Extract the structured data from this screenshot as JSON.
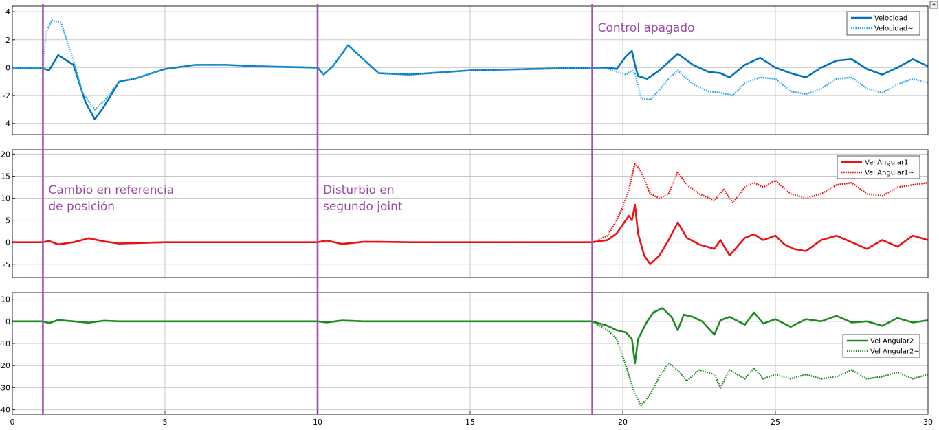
{
  "chart_data": {
    "type": "line",
    "x_axis": {
      "xlim": [
        0,
        30
      ],
      "ticks": [
        0,
        5,
        10,
        15,
        20,
        25,
        30
      ],
      "tick_labels": [
        "0",
        "5",
        "10",
        "15",
        "20",
        "25",
        "30"
      ]
    },
    "grid": true,
    "colors": {
      "velocity": "#0072bd",
      "velocity_est": "#2aa8e8",
      "vel_ang1": "#ee1111",
      "vel_ang2": "#1f8a1f",
      "markers": "#a050b0"
    },
    "event_markers": [
      {
        "x": 1,
        "label": [
          "Cambio en referencia",
          "de posición"
        ],
        "label_panel": 1
      },
      {
        "x": 10,
        "label": [
          "Disturbio en",
          "segundo joint"
        ],
        "label_panel": 1
      },
      {
        "x": 19,
        "label": [
          "Control apagado"
        ],
        "label_panel": 0
      }
    ],
    "panels": [
      {
        "ylim": [
          -4.8,
          4.4
        ],
        "yticks": [
          -4,
          -2,
          0,
          2,
          4
        ],
        "ytick_labels": [
          "-4",
          "-2",
          "0",
          "2",
          "4"
        ],
        "legend": "top-right",
        "series": [
          {
            "name": "Velocidad",
            "style": "solid",
            "color": "#0072bd",
            "x": [
              0,
              1,
              1.2,
              1.5,
              2.0,
              2.4,
              2.7,
              3.0,
              3.5,
              4.0,
              5.0,
              6.0,
              7.0,
              8.0,
              9.0,
              10.0,
              10.2,
              10.5,
              11.0,
              11.5,
              12.0,
              13.0,
              15.0,
              17.0,
              19.0,
              19.5,
              19.8,
              20.1,
              20.3,
              20.4,
              20.5,
              20.8,
              21.2,
              21.5,
              21.8,
              22.3,
              22.8,
              23.2,
              23.5,
              24.0,
              24.5,
              25.0,
              25.5,
              26.0,
              26.5,
              27.0,
              27.5,
              28.0,
              28.5,
              29.0,
              29.5,
              30.0
            ],
            "y": [
              0,
              -0.05,
              -0.2,
              0.9,
              0.2,
              -2.5,
              -3.7,
              -2.8,
              -1.0,
              -0.8,
              -0.1,
              0.2,
              0.2,
              0.1,
              0.05,
              0.0,
              -0.5,
              0.1,
              1.6,
              0.6,
              -0.4,
              -0.5,
              -0.2,
              -0.1,
              0.0,
              0.0,
              -0.1,
              0.8,
              1.2,
              0.2,
              -0.6,
              -0.8,
              -0.2,
              0.4,
              1.0,
              0.2,
              -0.3,
              -0.4,
              -0.7,
              0.2,
              0.7,
              0.0,
              -0.4,
              -0.7,
              0.0,
              0.5,
              0.6,
              -0.1,
              -0.5,
              0.0,
              0.6,
              0.1
            ]
          },
          {
            "name": "Velocidad~",
            "style": "dotted",
            "color": "#2aa8e8",
            "x": [
              0,
              1,
              1.1,
              1.3,
              1.6,
              2.0,
              2.3,
              2.7,
              3.0,
              3.5,
              4.0,
              5.0,
              6.0,
              7.0,
              8.0,
              9.0,
              10.0,
              10.2,
              10.5,
              11.0,
              11.5,
              12.0,
              13.0,
              15.0,
              17.0,
              19.0,
              19.5,
              19.8,
              20.1,
              20.3,
              20.4,
              20.6,
              20.9,
              21.2,
              21.5,
              21.8,
              22.3,
              22.8,
              23.2,
              23.6,
              24.0,
              24.5,
              25.0,
              25.5,
              26.0,
              26.5,
              27.0,
              27.5,
              28.0,
              28.5,
              29.0,
              29.5,
              30.0
            ],
            "y": [
              0,
              0,
              2.5,
              3.4,
              3.2,
              0.5,
              -1.8,
              -3.0,
              -2.4,
              -1.0,
              -0.8,
              -0.1,
              0.2,
              0.2,
              0.1,
              0.05,
              0.0,
              -0.5,
              0.1,
              1.6,
              0.6,
              -0.4,
              -0.5,
              -0.2,
              -0.1,
              0.0,
              -0.1,
              -0.3,
              -0.5,
              -0.2,
              -0.4,
              -2.2,
              -2.3,
              -1.6,
              -0.8,
              -0.2,
              -1.2,
              -1.7,
              -1.8,
              -2.0,
              -1.1,
              -0.7,
              -0.8,
              -1.7,
              -1.9,
              -1.5,
              -0.8,
              -0.7,
              -1.5,
              -1.8,
              -1.2,
              -0.8,
              -1.1
            ]
          }
        ]
      },
      {
        "ylim": [
          -8,
          21
        ],
        "yticks": [
          -5,
          0,
          5,
          10,
          15,
          20
        ],
        "ytick_labels": [
          "-5",
          "0",
          "5",
          "10",
          "15",
          "20"
        ],
        "legend": "top-right",
        "series": [
          {
            "name": "Vel Angular1",
            "style": "solid",
            "color": "#ee1111",
            "x": [
              0,
              1,
              1.2,
              1.5,
              2.0,
              2.5,
              3.0,
              3.5,
              4.0,
              5.0,
              10.0,
              10.3,
              10.8,
              11.5,
              12.0,
              13.0,
              15.0,
              19.0,
              19.5,
              19.8,
              20.0,
              20.2,
              20.3,
              20.4,
              20.5,
              20.7,
              20.9,
              21.2,
              21.5,
              21.8,
              22.1,
              22.5,
              23.0,
              23.2,
              23.5,
              24.0,
              24.3,
              24.6,
              25.0,
              25.3,
              25.6,
              26.0,
              26.5,
              27.0,
              27.5,
              28.0,
              28.5,
              29.0,
              29.5,
              30.0
            ],
            "y": [
              0,
              0,
              0.3,
              -0.5,
              0,
              0.9,
              0.2,
              -0.3,
              -0.2,
              0,
              0,
              0.4,
              -0.4,
              0.1,
              0.1,
              0,
              0,
              0,
              0.5,
              2.0,
              4.0,
              6.0,
              5.0,
              8.5,
              2.0,
              -3.0,
              -5.0,
              -3.0,
              0.5,
              4.5,
              1.0,
              -0.5,
              -1.5,
              0.5,
              -3.0,
              1.0,
              1.8,
              0.5,
              1.5,
              -0.5,
              -1.5,
              -2.0,
              0.5,
              1.5,
              0.0,
              -1.5,
              0.5,
              -1.0,
              1.5,
              0.5
            ]
          },
          {
            "name": "Vel Angular1~",
            "style": "dotted",
            "color": "#ee1111",
            "x": [
              0,
              1,
              1.2,
              1.5,
              2.0,
              2.5,
              3.0,
              3.5,
              4.0,
              5.0,
              10.0,
              10.3,
              10.8,
              11.5,
              12.0,
              13.0,
              15.0,
              19.0,
              19.5,
              19.8,
              20.0,
              20.2,
              20.4,
              20.6,
              20.9,
              21.2,
              21.5,
              21.8,
              22.1,
              22.5,
              23.0,
              23.3,
              23.6,
              24.0,
              24.3,
              24.6,
              25.0,
              25.5,
              26.0,
              26.5,
              27.0,
              27.5,
              28.0,
              28.5,
              29.0,
              29.5,
              30.0
            ],
            "y": [
              0,
              0,
              0.3,
              -0.5,
              0,
              0.9,
              0.2,
              -0.3,
              -0.2,
              0,
              0,
              0.4,
              -0.4,
              0.1,
              0.1,
              0,
              0,
              0,
              1.5,
              5.0,
              8.0,
              12.0,
              18.0,
              16.0,
              11.0,
              10.0,
              11.0,
              16.0,
              13.0,
              11.0,
              9.5,
              12.0,
              9.0,
              12.5,
              13.5,
              12.5,
              14.0,
              11.0,
              10.0,
              11.0,
              13.0,
              13.5,
              11.0,
              10.5,
              12.5,
              13.0,
              13.5
            ]
          }
        ]
      },
      {
        "ylim": [
          -42,
          13
        ],
        "yticks": [
          -40,
          -30,
          -20,
          -10,
          0,
          10
        ],
        "ytick_labels": [
          "-40",
          "-30",
          "-20",
          "-10",
          "0",
          "10"
        ],
        "legend": "right",
        "series": [
          {
            "name": "Vel Angular2",
            "style": "solid",
            "color": "#1f8a1f",
            "x": [
              0,
              1,
              1.2,
              1.5,
              2.0,
              2.5,
              3.0,
              3.5,
              4.0,
              5.0,
              10.0,
              10.3,
              10.8,
              11.5,
              12.0,
              13.0,
              15.0,
              19.0,
              19.5,
              19.8,
              20.1,
              20.3,
              20.4,
              20.5,
              20.8,
              21.0,
              21.3,
              21.6,
              21.8,
              22.0,
              22.3,
              22.6,
              23.0,
              23.2,
              23.5,
              24.0,
              24.3,
              24.6,
              25.0,
              25.5,
              26.0,
              26.5,
              27.0,
              27.5,
              28.0,
              28.5,
              29.0,
              29.5,
              30.0
            ],
            "y": [
              0,
              0,
              -0.8,
              0.6,
              0,
              -0.6,
              0.3,
              0,
              0,
              0,
              0,
              -0.5,
              0.4,
              0,
              0,
              0,
              0,
              0,
              -2.0,
              -4.0,
              -5.0,
              -8.0,
              -19.0,
              -8.0,
              0,
              4.0,
              6.0,
              2.0,
              -4.0,
              3.0,
              2.0,
              0,
              -6.0,
              0.5,
              2.0,
              -1.5,
              4.0,
              -1.0,
              1.0,
              -2.5,
              1.0,
              0,
              2.5,
              -0.5,
              0,
              -2.0,
              1.5,
              -0.5,
              0.5
            ]
          },
          {
            "name": "Vel Angular2~",
            "style": "dotted",
            "color": "#1f8a1f",
            "x": [
              0,
              1,
              1.2,
              1.5,
              2.0,
              2.5,
              3.0,
              3.5,
              4.0,
              5.0,
              10.0,
              10.3,
              10.8,
              11.5,
              12.0,
              13.0,
              15.0,
              19.0,
              19.5,
              19.8,
              20.1,
              20.4,
              20.6,
              20.9,
              21.2,
              21.5,
              21.8,
              22.1,
              22.5,
              23.0,
              23.2,
              23.5,
              24.0,
              24.3,
              24.6,
              25.0,
              25.5,
              26.0,
              26.5,
              27.0,
              27.5,
              28.0,
              28.5,
              29.0,
              29.5,
              30.0
            ],
            "y": [
              0,
              0,
              -0.8,
              0.6,
              0,
              -0.6,
              0.3,
              0,
              0,
              0,
              0,
              -0.5,
              0.4,
              0,
              0,
              0,
              0,
              0,
              -4.0,
              -8.0,
              -20.0,
              -33.0,
              -38.0,
              -33.0,
              -25.0,
              -19.0,
              -22.0,
              -27.0,
              -22.0,
              -24.0,
              -30.0,
              -22.0,
              -26.0,
              -21.0,
              -26.0,
              -24.0,
              -26.0,
              -24.0,
              -26.0,
              -25.0,
              -22.0,
              -26.0,
              -25.0,
              -23.0,
              -26.0,
              -24.0
            ]
          }
        ]
      }
    ]
  }
}
